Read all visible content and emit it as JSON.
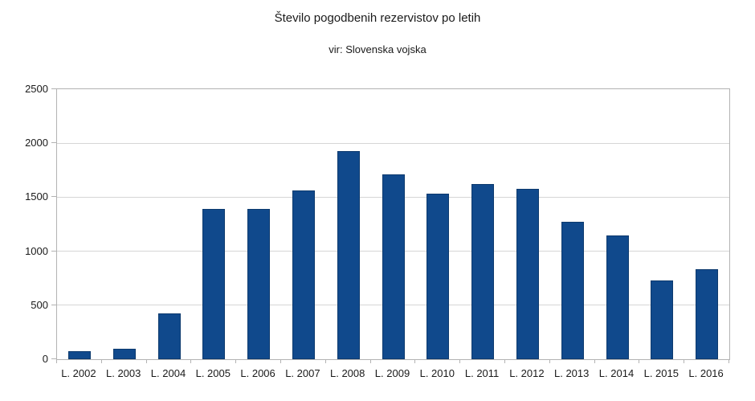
{
  "chart_data": {
    "type": "bar",
    "title": "Število pogodbenih rezervistov po letih",
    "subtitle": "vir: Slovenska vojska",
    "categories": [
      "L. 2002",
      "L. 2003",
      "L. 2004",
      "L. 2005",
      "L. 2006",
      "L. 2007",
      "L. 2008",
      "L. 2009",
      "L. 2010",
      "L. 2011",
      "L. 2012",
      "L. 2013",
      "L. 2014",
      "L. 2015",
      "L. 2016"
    ],
    "values": [
      75,
      100,
      425,
      1390,
      1390,
      1560,
      1925,
      1710,
      1530,
      1625,
      1575,
      1270,
      1145,
      730,
      830
    ],
    "xlabel": "",
    "ylabel": "",
    "ylim": [
      0,
      2500
    ],
    "y_ticks": [
      0,
      500,
      1000,
      1500,
      2000,
      2500
    ],
    "grid": true,
    "legend": "none",
    "colors": {
      "bar_fill": "#10498c",
      "bar_border": "#0d3a6e",
      "gridline": "#d6d6d6",
      "axis_frame": "#b3b3b3",
      "text": "#1a1a1a",
      "background": "#ffffff"
    }
  }
}
